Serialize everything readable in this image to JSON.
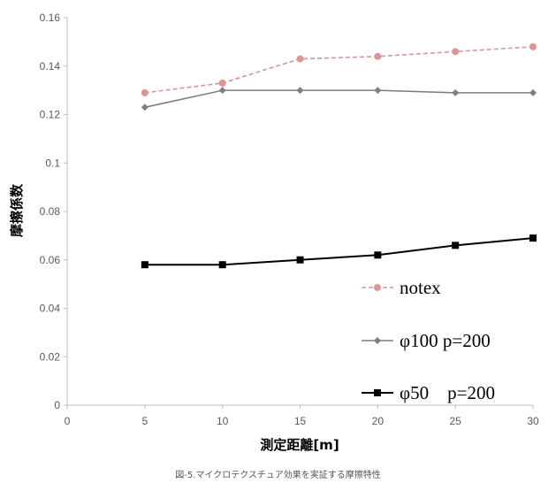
{
  "chart_data": {
    "type": "line",
    "x": [
      5,
      10,
      15,
      20,
      25,
      30
    ],
    "series": [
      {
        "name": "notex",
        "values": [
          0.129,
          0.133,
          0.143,
          0.144,
          0.146,
          0.148
        ],
        "color": "#d99694",
        "dash": true,
        "marker": "circle"
      },
      {
        "name": "φ100 p=200",
        "values": [
          0.123,
          0.13,
          0.13,
          0.13,
          0.129,
          0.129
        ],
        "color": "#7f7f7f",
        "dash": false,
        "marker": "diamond"
      },
      {
        "name": "φ50　p=200",
        "values": [
          0.058,
          0.058,
          0.06,
          0.062,
          0.066,
          0.069
        ],
        "color": "#000000",
        "dash": false,
        "marker": "square"
      }
    ],
    "xlim": [
      0,
      30
    ],
    "ylim": [
      0,
      0.16
    ],
    "x_ticks": [
      "0",
      "5",
      "10",
      "15",
      "20",
      "25",
      "30"
    ],
    "y_ticks": [
      "0",
      "0.02",
      "0.04",
      "0.06",
      "0.08",
      "0.1",
      "0.12",
      "0.14",
      "0.16"
    ],
    "xlabel": "測定距離[m]",
    "ylabel": "摩擦係数",
    "grid": false,
    "legend": "bottom-right"
  },
  "caption": "図-5.マイクロテクスチュア効果を実証する摩擦特性"
}
